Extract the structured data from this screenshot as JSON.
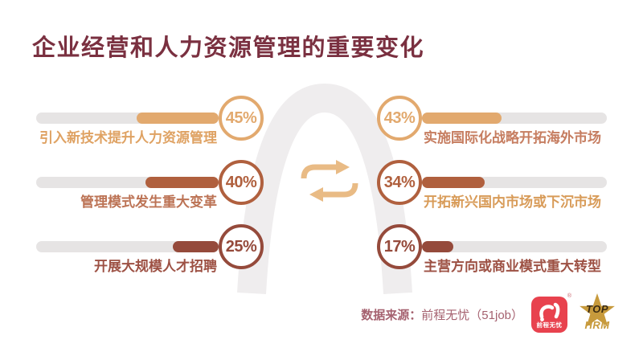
{
  "title": "企业经营和人力资源管理的重要变化",
  "chart_data": {
    "type": "bar",
    "unit": "%",
    "orientation": "horizontal",
    "value_range": [
      0,
      100
    ],
    "series": [
      {
        "side": "left",
        "items": [
          {
            "label": "引入新技术提升人力资源管理",
            "value": 45,
            "color": "#E2A96E",
            "label_color": "#DFA263"
          },
          {
            "label": "管理模式发生重大变革",
            "value": 40,
            "color": "#B0603E",
            "label_color": "#BC7355"
          },
          {
            "label": "开展大规模人才招聘",
            "value": 25,
            "color": "#954A3B",
            "label_color": "#9D5144"
          }
        ]
      },
      {
        "side": "right",
        "items": [
          {
            "label": "实施国际化战略开拓海外市场",
            "value": 43,
            "color": "#E2A96E",
            "label_color": "#C67D60"
          },
          {
            "label": "开拓新兴国内市场或下沉市场",
            "value": 34,
            "color": "#B0603E",
            "label_color": "#D89B58"
          },
          {
            "label": "主营方向或商业模式重大转型",
            "value": 17,
            "color": "#954A3B",
            "label_color": "#9D5144"
          }
        ]
      }
    ]
  },
  "source": {
    "label": "数据来源：",
    "value": "前程无忧（51job）"
  },
  "logos": {
    "job51": {
      "text": "前程无忧",
      "registered": "®",
      "color": "#E8424E"
    },
    "tophrm": {
      "top": "TOP",
      "hrm": "HRM",
      "color": "#C79A3C"
    }
  },
  "colors": {
    "title": "#7A3040",
    "track": "#E6E4E4",
    "arch": "#EFEDEE",
    "swap": "#E9BB85",
    "source_text": "#A5616F"
  }
}
